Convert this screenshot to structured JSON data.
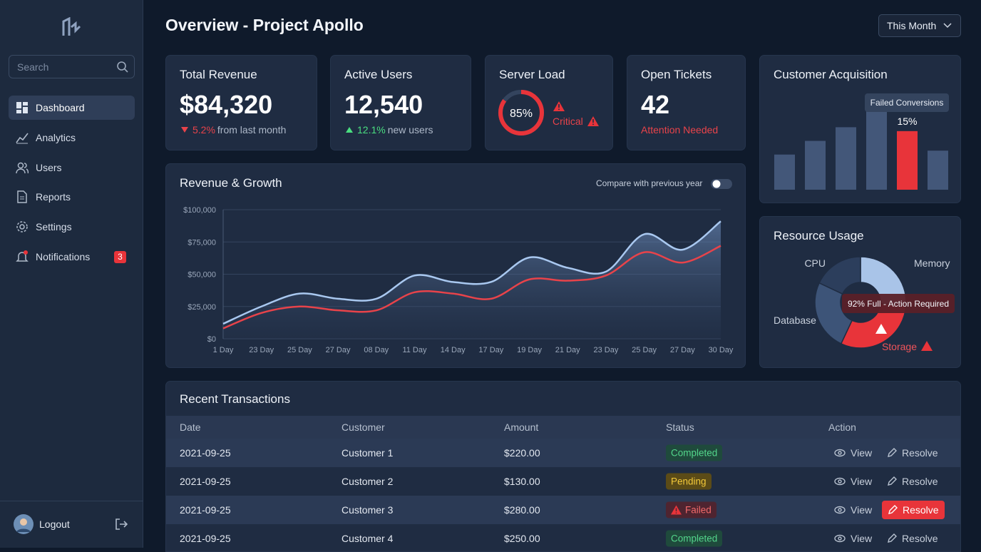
{
  "sidebar": {
    "search_placeholder": "Search",
    "nav": [
      "Dashboard",
      "Analytics",
      "Users",
      "Reports",
      "Settings",
      "Notifications"
    ],
    "notifications_badge": 3,
    "logout": "Logout"
  },
  "header": {
    "title": "Overview - Project Apollo",
    "period": "This Month"
  },
  "kpis": [
    {
      "title": "Total Revenue",
      "value": "$84,320",
      "change": "5.2%",
      "note": "from last month"
    },
    {
      "title": "Active Users",
      "value": "12,540",
      "change": "12.1%",
      "note": "new users"
    },
    {
      "title": "Open Tickets",
      "value": "42",
      "note": "Attention Needed"
    }
  ],
  "chart_data": [
    {
      "type": "line",
      "title": "Revenue & Growth",
      "toggle_label": "Compare with previous year",
      "categories": [
        "1 Day",
        "23 Day",
        "25 Day",
        "27 Day",
        "08 Day",
        "11 Day",
        "14 Day",
        "17 Day",
        "19 Day",
        "21 Day",
        "23 Day",
        "25 Day",
        "27 Day",
        "30 Day"
      ],
      "series": [
        {
          "color": "#a9c8f0",
          "area": true,
          "values": [
            11600,
            25000,
            35000,
            31000,
            31000,
            49000,
            44000,
            44000,
            63000,
            55000,
            52000,
            81000,
            69000,
            91000
          ]
        },
        {
          "color": "#e8434a",
          "values": [
            8000,
            20000,
            25000,
            22000,
            22000,
            36000,
            35000,
            31000,
            46000,
            45000,
            49000,
            67000,
            59000,
            72000
          ]
        }
      ],
      "ylim": [
        0,
        100000
      ],
      "yticks": [
        {
          "value": 0,
          "label": "$0"
        },
        {
          "value": 25000,
          "label": "$25,000"
        },
        {
          "value": 50000,
          "label": "$50,000"
        },
        {
          "value": 75000,
          "label": "$75,000"
        },
        {
          "value": 100000,
          "label": "$100,000"
        }
      ],
      "grid": true
    },
    {
      "type": "gauge",
      "title": "Server Load",
      "values": [
        85
      ],
      "value_labels": [
        "85%"
      ],
      "ylim": [
        0,
        100
      ],
      "status": "Critical",
      "color": "#e8343a"
    },
    {
      "type": "bar",
      "title": "Customer Acquisition",
      "annotation": "Failed Conversions",
      "categories": [
        null,
        null,
        null,
        null,
        null,
        null
      ],
      "values": [
        9,
        12.5,
        16,
        21,
        15,
        10
      ],
      "value_labels": [
        null,
        null,
        null,
        null,
        "15%",
        null
      ],
      "colors": [
        "#4a5f82",
        "#4a5f82",
        "#4a5f82",
        "#4a5f82",
        "#e8343a",
        "#4a5f82"
      ]
    },
    {
      "type": "pie",
      "title": "Resource Usage",
      "annotation": "92% Full - Action Required",
      "categories": [
        "Memory",
        "Storage",
        "Database",
        "CPU"
      ],
      "values": [
        26,
        31,
        25,
        18
      ],
      "colors": [
        "#a9c4e8",
        "#e8343a",
        "#3d5478",
        "#2c3e5c"
      ]
    }
  ],
  "table": {
    "title": "Recent Transactions",
    "columns": [
      "Date",
      "Customer",
      "Amount",
      "Status",
      "Action"
    ],
    "rows": [
      [
        "2021-09-25",
        "Customer 1",
        "$220.00",
        "Completed",
        "View",
        "Resolve"
      ],
      [
        "2021-09-25",
        "Customer 2",
        "$130.00",
        "Pending",
        "View",
        "Resolve"
      ],
      [
        "2021-09-25",
        "Customer 3",
        "$280.00",
        "Failed",
        "View",
        "Resolve"
      ],
      [
        "2021-09-25",
        "Customer 4",
        "$250.00",
        "Completed",
        "View",
        "Resolve"
      ]
    ]
  }
}
